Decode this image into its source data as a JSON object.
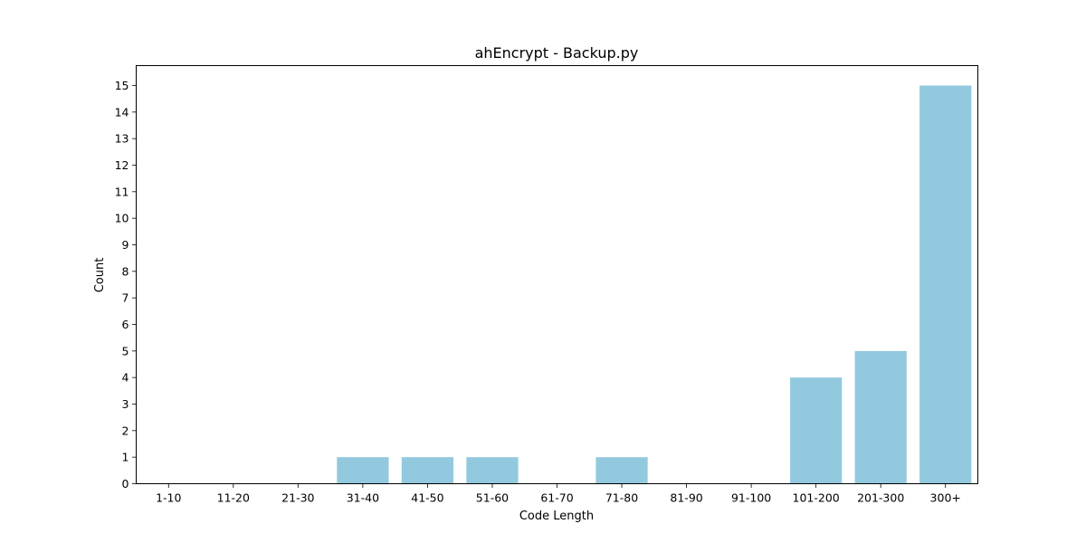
{
  "chart_data": {
    "type": "bar",
    "title": "ahEncrypt - Backup.py",
    "xlabel": "Code Length",
    "ylabel": "Count",
    "categories": [
      "1-10",
      "11-20",
      "21-30",
      "31-40",
      "41-50",
      "51-60",
      "61-70",
      "71-80",
      "81-90",
      "91-100",
      "101-200",
      "201-300",
      "300+"
    ],
    "values": [
      0,
      0,
      0,
      1,
      1,
      1,
      0,
      1,
      0,
      0,
      4,
      5,
      15
    ],
    "yticks": [
      0,
      1,
      2,
      3,
      4,
      5,
      6,
      7,
      8,
      9,
      10,
      11,
      12,
      13,
      14,
      15
    ],
    "ylim": [
      0,
      15.75
    ],
    "grid": false,
    "legend": "none",
    "bar_color": "#92c9de"
  }
}
